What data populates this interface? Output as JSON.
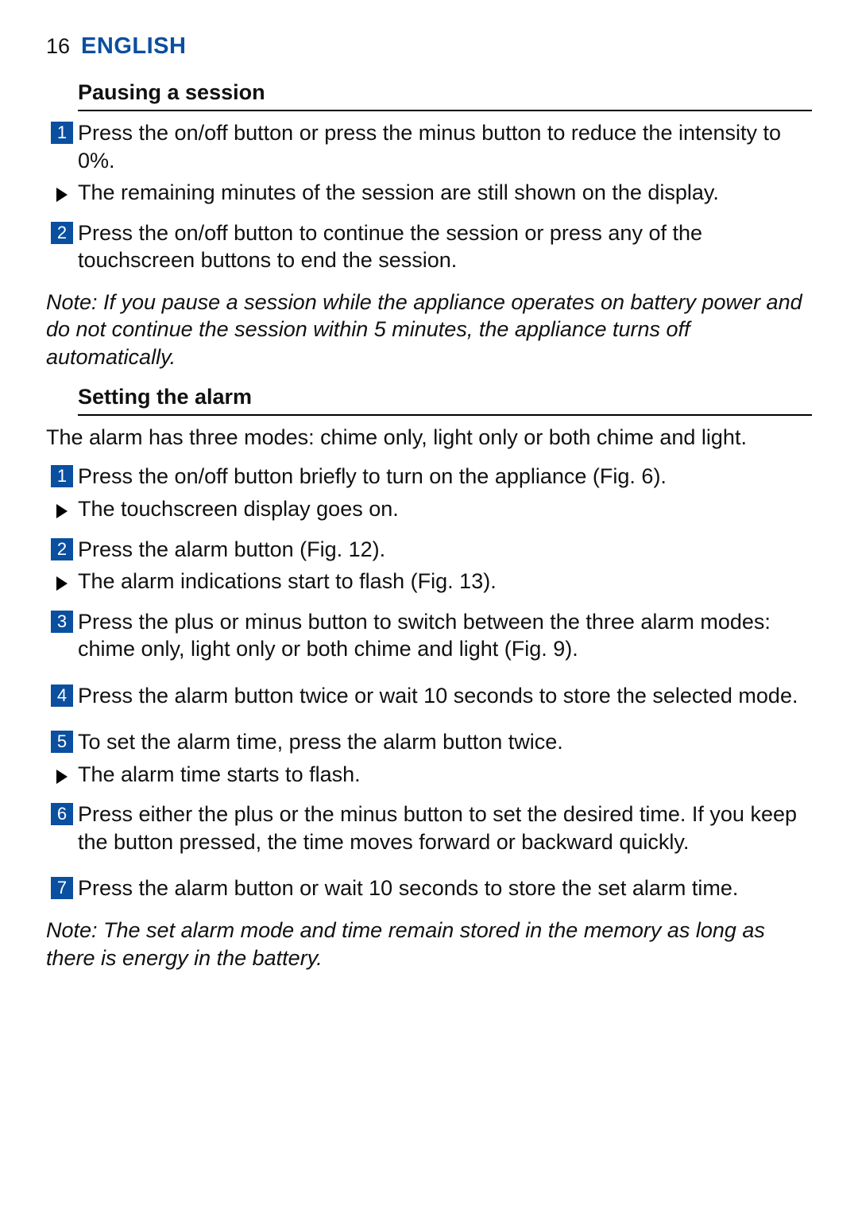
{
  "header": {
    "page_number": "16",
    "language": "ENGLISH"
  },
  "colors": {
    "accent": "#0a4fa0",
    "text": "#111111",
    "rule": "#000000",
    "marker_bg": "#0a4fa0",
    "marker_fg": "#ffffff"
  },
  "sections": {
    "pausing": {
      "title": "Pausing a session",
      "step1_num": "1",
      "step1": "Press the on/off button or press the minus button to reduce the intensity to 0%.",
      "bullet1": "The remaining minutes of the session are still shown on the display.",
      "step2_num": "2",
      "step2": "Press the on/off button to continue the session or press any of the touchscreen buttons to end the session.",
      "note": "Note: If you pause a session while the appliance operates on battery power and do not continue the session within 5 minutes, the appliance turns off automatically."
    },
    "alarm": {
      "title": "Setting the alarm",
      "intro": "The alarm has three modes: chime only, light only or both chime and light.",
      "step1_num": "1",
      "step1": "Press the on/off button briefly to turn on the appliance (Fig. 6).",
      "bullet1": "The touchscreen display goes on.",
      "step2_num": "2",
      "step2": "Press the alarm button (Fig. 12).",
      "bullet2": "The alarm indications start to flash (Fig. 13).",
      "step3_num": "3",
      "step3": "Press the plus or minus button to switch between the three alarm modes: chime only, light only or both chime and light (Fig. 9).",
      "step4_num": "4",
      "step4": "Press the alarm button twice or wait 10 seconds to store the selected mode.",
      "step5_num": "5",
      "step5": "To set the alarm time, press the alarm button twice.",
      "bullet5": "The alarm time starts to flash.",
      "step6_num": "6",
      "step6": "Press either the plus or the minus button to set the desired time. If you keep the button pressed, the time moves forward or backward quickly.",
      "step7_num": "7",
      "step7": "Press the alarm button or wait 10 seconds to store the set alarm time.",
      "note": "Note: The set alarm mode and time remain stored in the memory as long as there is energy in the battery."
    }
  }
}
